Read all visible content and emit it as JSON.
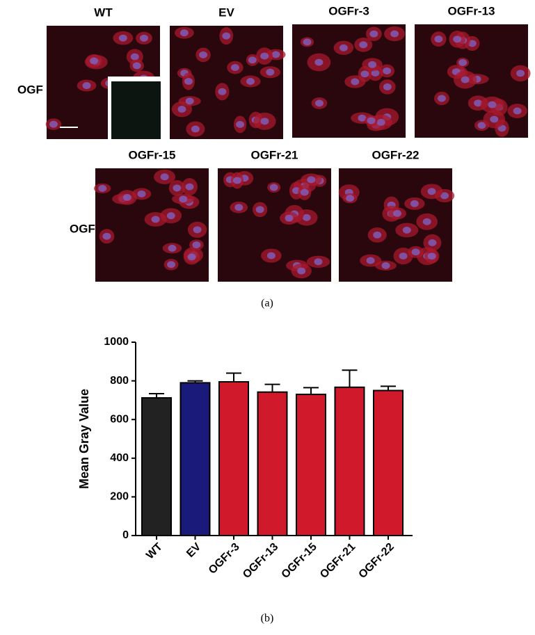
{
  "panel_a": {
    "rows": [
      {
        "label": "OGF",
        "images": [
          "WT",
          "EV",
          "OGFr-3",
          "OGFr-13"
        ]
      },
      {
        "label": "OGF",
        "images": [
          "OGFr-15",
          "OGFr-21",
          "OGFr-22"
        ]
      }
    ],
    "caption": "(a)"
  },
  "chart_data": {
    "type": "bar",
    "y_label": "Mean Gray Value",
    "categories": [
      "WT",
      "EV",
      "OGFr-3",
      "OGFr-13",
      "OGFr-15",
      "OGFr-21",
      "OGFr-22"
    ],
    "values": [
      712,
      790,
      795,
      742,
      730,
      767,
      750
    ],
    "errors": [
      22,
      10,
      45,
      40,
      35,
      88,
      22
    ],
    "colors": [
      "#222222",
      "#1a1a7a",
      "#d01a2c",
      "#d01a2c",
      "#d01a2c",
      "#d01a2c",
      "#d01a2c"
    ],
    "ylim": [
      0,
      1000
    ],
    "yticks": [
      0,
      200,
      400,
      600,
      800,
      1000
    ]
  },
  "panel_b": {
    "caption": "(b)"
  }
}
